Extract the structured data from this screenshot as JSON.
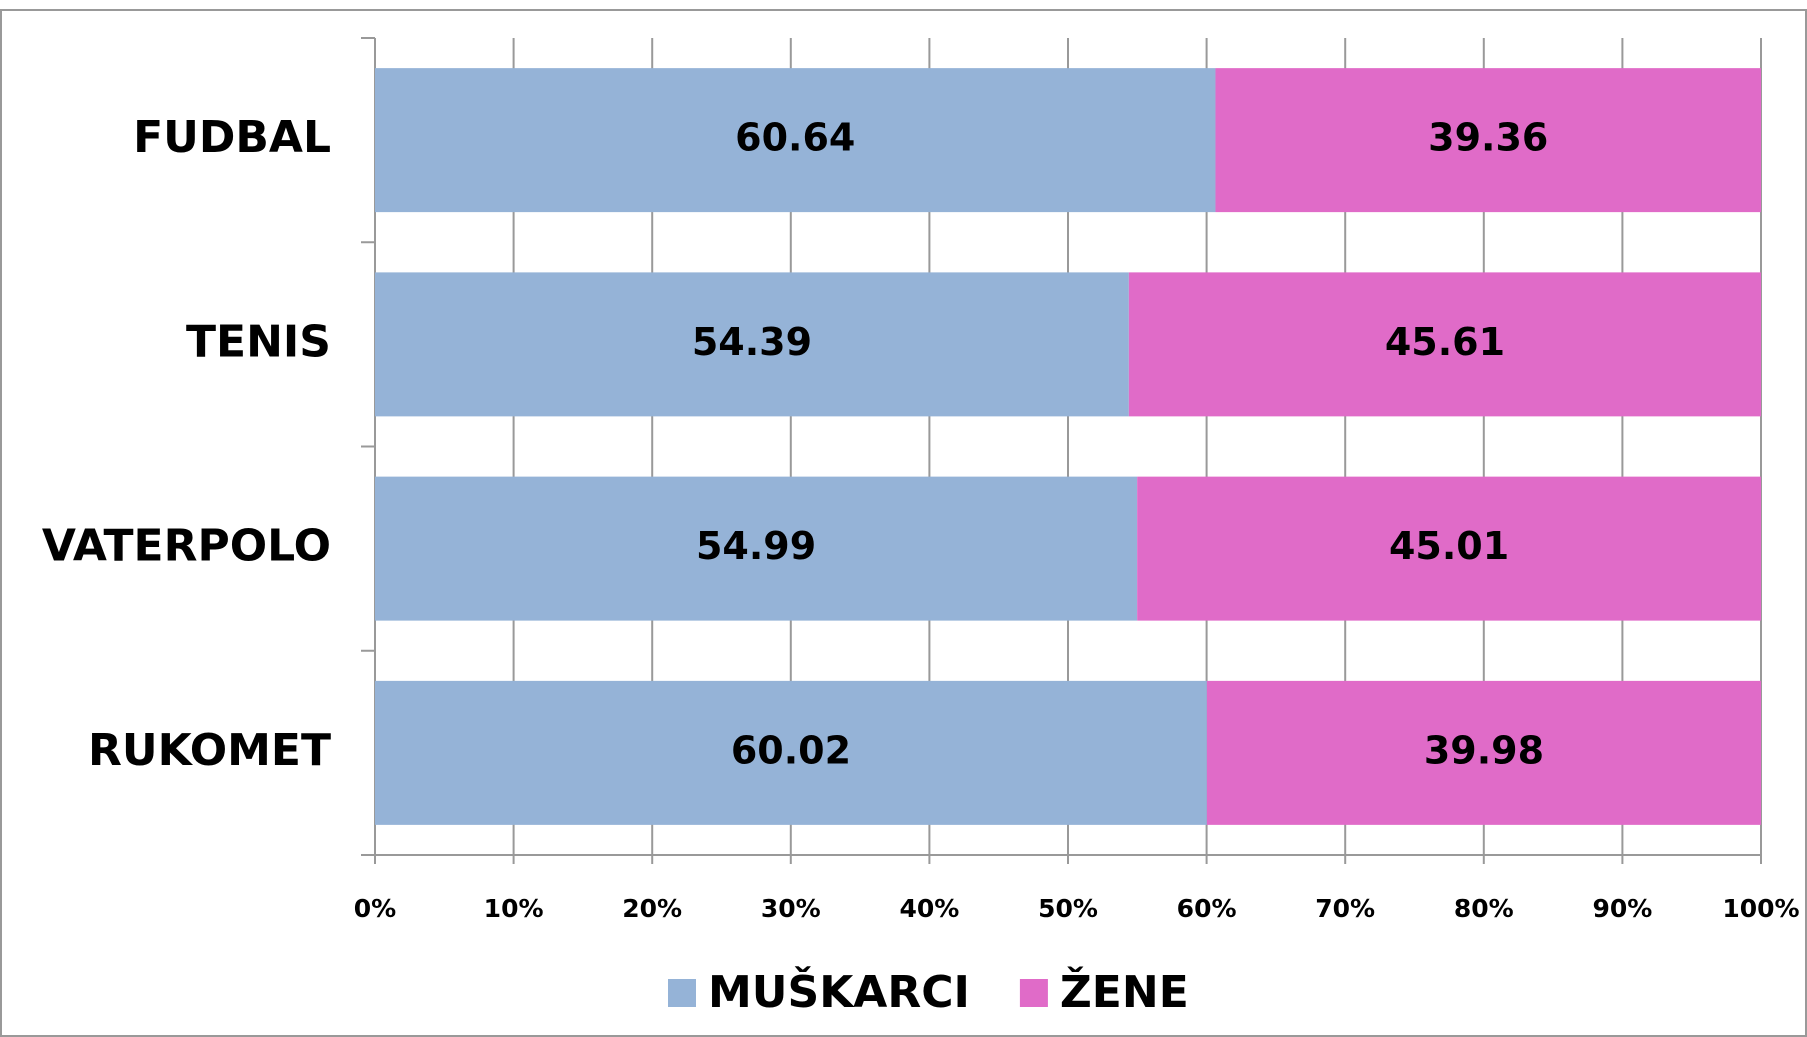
{
  "chart_data": {
    "type": "stacked-bar-horizontal",
    "categories": [
      "FUDBAL",
      "TENIS",
      "VATERPOLO",
      "RUKOMET"
    ],
    "series": [
      {
        "name": "MUŠKARCI",
        "color": "#95b3d7",
        "values": [
          60.64,
          54.39,
          54.99,
          60.02
        ]
      },
      {
        "name": "ŽENE",
        "color": "#e06bc8",
        "values": [
          39.36,
          45.61,
          45.01,
          39.98
        ]
      }
    ],
    "xlim": [
      0,
      100
    ],
    "xticks": [
      {
        "value": 0,
        "label": "0%"
      },
      {
        "value": 10,
        "label": "10%"
      },
      {
        "value": 20,
        "label": "20%"
      },
      {
        "value": 30,
        "label": "30%"
      },
      {
        "value": 40,
        "label": "40%"
      },
      {
        "value": 50,
        "label": "50%"
      },
      {
        "value": 60,
        "label": "60%"
      },
      {
        "value": 70,
        "label": "70%"
      },
      {
        "value": 80,
        "label": "80%"
      },
      {
        "value": 90,
        "label": "90%"
      },
      {
        "value": 100,
        "label": "100%"
      }
    ],
    "grid": true,
    "legend": "bottom"
  }
}
